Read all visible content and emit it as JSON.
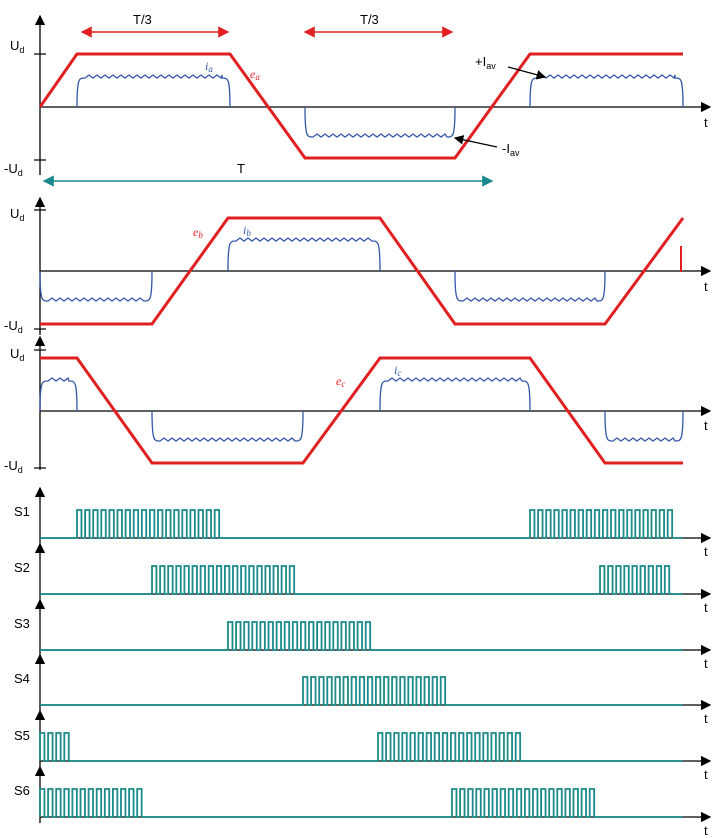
{
  "colors": {
    "emf": "#e02020",
    "current": "#3355aa",
    "switch": "#1a8a8a",
    "arrow_red": "#e02020",
    "arrow_teal": "#1a8a8a",
    "axis": "#000000"
  },
  "labels": {
    "third_period_1": "T/3",
    "third_period_2": "T/3",
    "period": "T",
    "plus_iav": "+I",
    "minus_iav": "-I",
    "iav_sub": "av",
    "ud_main": "U",
    "ud_sub": "d",
    "neg_ud_main": "-U",
    "time": "t",
    "ea": "e",
    "ea_sub": "a",
    "eb": "e",
    "eb_sub": "b",
    "ec": "e",
    "ec_sub": "c",
    "ia": "i",
    "ia_sub": "a",
    "ib": "i",
    "ib_sub": "b",
    "ic": "i",
    "ic_sub": "c"
  },
  "switches": [
    {
      "name": "S1"
    },
    {
      "name": "S2"
    },
    {
      "name": "S3"
    },
    {
      "name": "S4"
    },
    {
      "name": "S5"
    },
    {
      "name": "S6"
    }
  ]
}
